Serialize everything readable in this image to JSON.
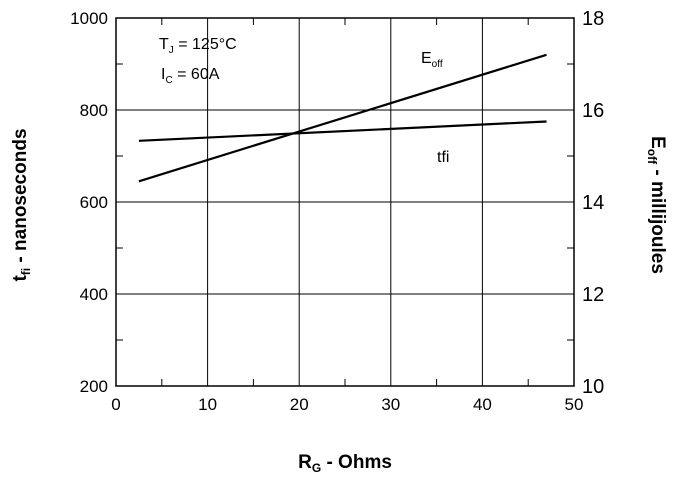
{
  "chart_data": {
    "type": "line",
    "x": [
      2.5,
      47
    ],
    "series": [
      {
        "name": "tfi",
        "axis": "left",
        "values": [
          733,
          775
        ]
      },
      {
        "name": "Eoff",
        "axis": "right",
        "values": [
          14.45,
          17.2
        ]
      }
    ],
    "xlim": [
      0,
      50
    ],
    "ylim": [
      200,
      1000
    ],
    "y2lim": [
      10,
      18
    ],
    "xticks": [
      "0",
      "10",
      "20",
      "30",
      "40",
      "50"
    ],
    "yticks": [
      "200",
      "400",
      "600",
      "800",
      "1000"
    ],
    "y2ticks": [
      "10",
      "12",
      "14",
      "16",
      "18"
    ],
    "xlabel": {
      "main": "R",
      "sub": "G",
      "rest": " - Ohms"
    },
    "ylabel": {
      "main": "t",
      "sub": "fi",
      "rest": " - nanoseconds"
    },
    "y2label": {
      "main": "E",
      "sub": "off",
      "rest": " - millijoules"
    },
    "series_labels": {
      "eoff": {
        "main": "E",
        "sub": "off"
      },
      "tfi": {
        "main": "tfi"
      }
    },
    "conditions": {
      "tj": {
        "main": "T",
        "sub": "J",
        "rest": " = 125°C"
      },
      "ic": {
        "main": "I",
        "sub": "C",
        "rest": " = 60A"
      }
    },
    "grid": true,
    "line_color": "#000000"
  }
}
